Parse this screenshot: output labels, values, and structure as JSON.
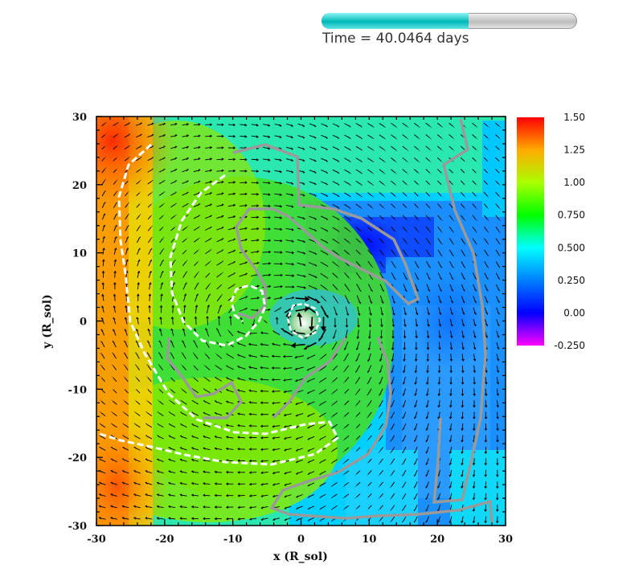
{
  "header": {
    "time_label": "Time = 40.0464 days",
    "time_progress": 0.575
  },
  "chart_data": {
    "type": "heatmap",
    "title": "",
    "xlabel": "x (R_sol)",
    "ylabel": "y (R_sol)",
    "xlim": [
      -30,
      30
    ],
    "ylim": [
      -30,
      30
    ],
    "x_ticks": [
      "-30",
      "-20",
      "-10",
      "0",
      "10",
      "20",
      "30"
    ],
    "y_ticks": [
      "30",
      "20",
      "10",
      "0",
      "-10",
      "-20",
      "-30"
    ],
    "colorbar": {
      "min": -0.25,
      "max": 1.5,
      "labels": [
        "1.50",
        "1.25",
        "1.00",
        "0.750",
        "0.500",
        "0.250",
        "0.00",
        "-0.250"
      ],
      "colors": [
        "#ff00ff",
        "#0000ff",
        "#00ffff",
        "#00ff00",
        "#ffff00",
        "#ff0000"
      ]
    },
    "overlays": {
      "vector_field": "velocity arrows (black)",
      "contours": [
        "white dashed",
        "gray"
      ]
    }
  }
}
